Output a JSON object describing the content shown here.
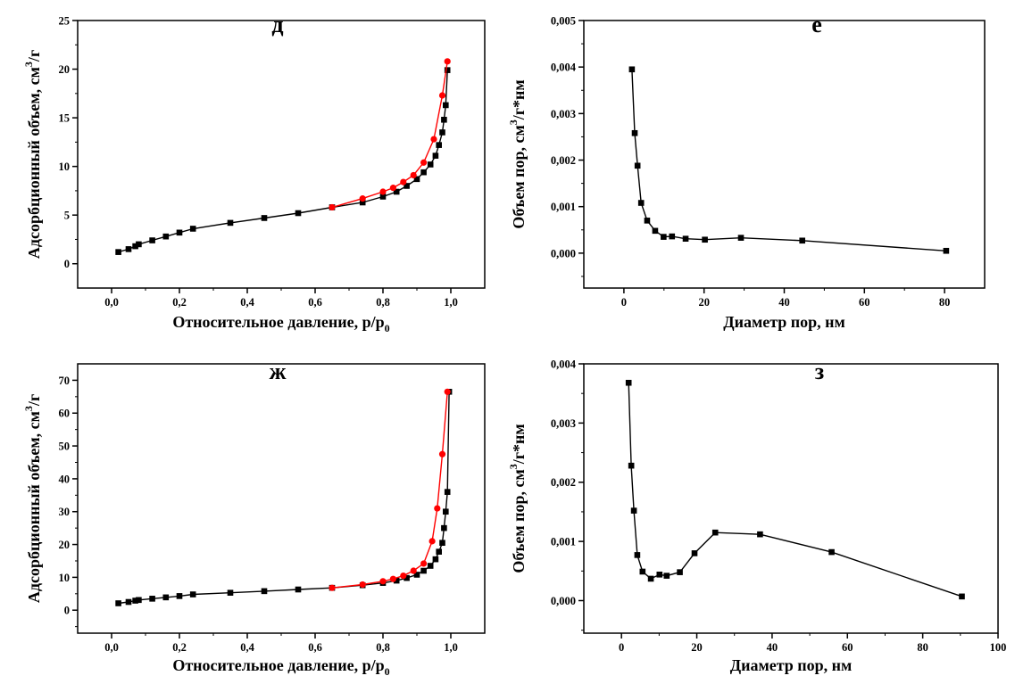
{
  "chart_data": [
    {
      "type": "line",
      "panel_label": "д",
      "xlabel": "Относительное давление, p/p",
      "xlabel_sub": "0",
      "ylabel_pre": "Адсорбционный объем, см",
      "ylabel_sup": "3",
      "ylabel_post": "/г",
      "xlim": [
        -0.1,
        1.1
      ],
      "ylim": [
        -2.5,
        25
      ],
      "xticks": [
        0.0,
        0.2,
        0.4,
        0.6,
        0.8,
        1.0
      ],
      "xtick_labels": [
        "0,0",
        "0,2",
        "0,4",
        "0,6",
        "0,8",
        "1,0"
      ],
      "yticks": [
        0,
        5,
        10,
        15,
        20,
        25
      ],
      "ytick_labels": [
        "0",
        "5",
        "10",
        "15",
        "20",
        "25"
      ],
      "series": [
        {
          "color": "#ff0000",
          "marker": "circle",
          "x": [
            0.65,
            0.74,
            0.8,
            0.83,
            0.86,
            0.89,
            0.92,
            0.95,
            0.975,
            0.99
          ],
          "y": [
            5.8,
            6.7,
            7.4,
            7.8,
            8.4,
            9.1,
            10.4,
            12.8,
            17.3,
            20.8
          ]
        },
        {
          "color": "#000000",
          "marker": "square",
          "x": [
            0.02,
            0.05,
            0.07,
            0.08,
            0.12,
            0.16,
            0.2,
            0.24,
            0.35,
            0.45,
            0.55,
            0.65,
            0.74,
            0.8,
            0.84,
            0.87,
            0.9,
            0.92,
            0.94,
            0.955,
            0.965,
            0.975,
            0.98,
            0.985,
            0.99
          ],
          "y": [
            1.2,
            1.5,
            1.8,
            2.0,
            2.4,
            2.8,
            3.2,
            3.6,
            4.2,
            4.7,
            5.2,
            5.8,
            6.3,
            6.9,
            7.4,
            8.0,
            8.7,
            9.4,
            10.2,
            11.1,
            12.2,
            13.5,
            14.8,
            16.3,
            19.9
          ]
        }
      ]
    },
    {
      "type": "line",
      "panel_label": "е",
      "xlabel": "Диаметр пор, нм",
      "ylabel_pre": "Объем пор, см",
      "ylabel_sup": "3",
      "ylabel_post": "/г*нм",
      "xlim": [
        -10,
        90
      ],
      "ylim": [
        -0.00075,
        0.005
      ],
      "xticks": [
        0,
        20,
        40,
        60,
        80
      ],
      "xtick_labels": [
        "0",
        "20",
        "40",
        "60",
        "80"
      ],
      "yticks": [
        0,
        0.001,
        0.002,
        0.003,
        0.004,
        0.005
      ],
      "ytick_labels": [
        "0,000",
        "0,001",
        "0,002",
        "0,003",
        "0,004",
        "0,005"
      ],
      "series": [
        {
          "color": "#000000",
          "marker": "square",
          "x": [
            2.0,
            2.7,
            3.4,
            4.3,
            5.8,
            7.8,
            9.9,
            12.0,
            15.4,
            20.2,
            29.2,
            44.5,
            80.4
          ],
          "y": [
            0.00395,
            0.00258,
            0.00188,
            0.00108,
            0.0007,
            0.00048,
            0.00035,
            0.00036,
            0.00031,
            0.00029,
            0.00033,
            0.00027,
            5e-05
          ]
        }
      ]
    },
    {
      "type": "line",
      "panel_label": "ж",
      "xlabel": "Относительное давление, p/p",
      "xlabel_sub": "0",
      "ylabel_pre": "Адсорбционный объем, см",
      "ylabel_sup": "3",
      "ylabel_post": "/г",
      "xlim": [
        -0.1,
        1.1
      ],
      "ylim": [
        -7,
        75
      ],
      "xticks": [
        0.0,
        0.2,
        0.4,
        0.6,
        0.8,
        1.0
      ],
      "xtick_labels": [
        "0,0",
        "0,2",
        "0,4",
        "0,6",
        "0,8",
        "1,0"
      ],
      "yticks": [
        0,
        10,
        20,
        30,
        40,
        50,
        60,
        70
      ],
      "ytick_labels": [
        "0",
        "10",
        "20",
        "30",
        "40",
        "50",
        "60",
        "70"
      ],
      "series": [
        {
          "color": "#ff0000",
          "marker": "circle",
          "x": [
            0.65,
            0.74,
            0.8,
            0.83,
            0.86,
            0.89,
            0.92,
            0.945,
            0.96,
            0.975,
            0.99
          ],
          "y": [
            6.8,
            7.8,
            8.8,
            9.5,
            10.5,
            12.0,
            14.2,
            21.0,
            31.0,
            47.5,
            66.5
          ]
        },
        {
          "color": "#000000",
          "marker": "square",
          "x": [
            0.02,
            0.05,
            0.07,
            0.08,
            0.12,
            0.16,
            0.2,
            0.24,
            0.35,
            0.45,
            0.55,
            0.65,
            0.74,
            0.8,
            0.84,
            0.87,
            0.9,
            0.92,
            0.94,
            0.955,
            0.965,
            0.975,
            0.98,
            0.985,
            0.99,
            0.995
          ],
          "y": [
            2.1,
            2.5,
            2.9,
            3.1,
            3.5,
            3.9,
            4.3,
            4.8,
            5.3,
            5.8,
            6.3,
            6.8,
            7.6,
            8.3,
            9.0,
            9.8,
            10.8,
            12.0,
            13.5,
            15.5,
            17.8,
            20.5,
            25.0,
            30.0,
            36.0,
            66.5
          ]
        }
      ]
    },
    {
      "type": "line",
      "panel_label": "з",
      "xlabel": "Диаметр пор, нм",
      "ylabel_pre": "Объем пор, см",
      "ylabel_sup": "3",
      "ylabel_post": "/г*нм",
      "xlim": [
        -10,
        100
      ],
      "ylim": [
        -0.00055,
        0.004
      ],
      "xticks": [
        0,
        20,
        40,
        60,
        80,
        100
      ],
      "xtick_labels": [
        "0",
        "20",
        "40",
        "60",
        "80",
        "100"
      ],
      "yticks": [
        0,
        0.001,
        0.002,
        0.003,
        0.004
      ],
      "ytick_labels": [
        "0,000",
        "0,001",
        "0,002",
        "0,003",
        "0,004"
      ],
      "series": [
        {
          "color": "#000000",
          "marker": "square",
          "x": [
            1.9,
            2.6,
            3.3,
            4.2,
            5.6,
            7.8,
            10.1,
            12.0,
            15.5,
            19.4,
            24.9,
            36.8,
            55.8,
            90.4
          ],
          "y": [
            0.00368,
            0.00228,
            0.00152,
            0.00077,
            0.00049,
            0.00037,
            0.00044,
            0.00042,
            0.00048,
            0.0008,
            0.00115,
            0.00112,
            0.00082,
            7e-05
          ]
        }
      ]
    }
  ]
}
